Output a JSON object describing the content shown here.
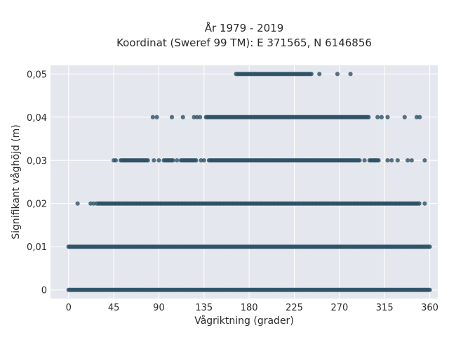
{
  "chart_data": {
    "type": "scatter",
    "title_lines": [
      "År 1979 - 2019",
      "Koordinat (Sweref 99 TM): E 371565, N 6146856"
    ],
    "xlabel": "Vågriktning (grader)",
    "ylabel": "Signifikant våghöjd (m)",
    "xlim": [
      -18,
      368
    ],
    "ylim": [
      -0.002,
      0.052
    ],
    "xticks": [
      0,
      45,
      90,
      135,
      180,
      225,
      270,
      315,
      360
    ],
    "xtick_labels": [
      "0",
      "45",
      "90",
      "135",
      "180",
      "225",
      "270",
      "315",
      "360"
    ],
    "yticks": [
      0,
      0.01,
      0.02,
      0.03,
      0.04,
      0.05
    ],
    "ytick_labels": [
      "0",
      "0,01",
      "0,02",
      "0,03",
      "0,04",
      "0,05"
    ],
    "grid": true,
    "colors": {
      "background": "#e5e7ee",
      "grid": "#ffffff",
      "point": "#2e5166"
    },
    "series": [
      {
        "y": 0,
        "segments": [
          [
            0,
            360
          ]
        ],
        "points": []
      },
      {
        "y": 0.01,
        "segments": [
          [
            0,
            360
          ]
        ],
        "points": []
      },
      {
        "y": 0.02,
        "segments": [
          [
            30,
            350
          ]
        ],
        "points": [
          9,
          22,
          25,
          28,
          355
        ]
      },
      {
        "y": 0.03,
        "segments": [
          [
            52,
            80
          ],
          [
            95,
            105
          ],
          [
            112,
            128
          ],
          [
            140,
            290
          ],
          [
            300,
            310
          ]
        ],
        "points": [
          45,
          47,
          85,
          90,
          108,
          132,
          135,
          295,
          318,
          322,
          328,
          338,
          342,
          355
        ]
      },
      {
        "y": 0.04,
        "segments": [
          [
            137,
            300
          ]
        ],
        "points": [
          84,
          88,
          103,
          114,
          125,
          128,
          131,
          308,
          312,
          318,
          335,
          347,
          350
        ]
      },
      {
        "y": 0.05,
        "segments": [
          [
            167,
            242
          ]
        ],
        "points": [
          250,
          268,
          281
        ]
      }
    ]
  }
}
